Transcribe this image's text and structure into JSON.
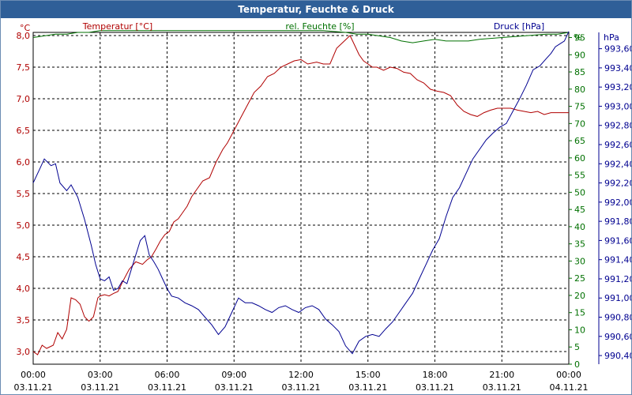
{
  "window": {
    "title": "Temperatur, Feuchte & Druck"
  },
  "colors": {
    "temperature": "#b00000",
    "humidity": "#007000",
    "pressure": "#000090",
    "grid": "#000000"
  },
  "chart_data": {
    "type": "line",
    "title": "Temperatur, Feuchte & Druck",
    "x_ticks": [
      {
        "time": "00:00",
        "date": "03.11.21"
      },
      {
        "time": "03:00",
        "date": "03.11.21"
      },
      {
        "time": "06:00",
        "date": "03.11.21"
      },
      {
        "time": "09:00",
        "date": "03.11.21"
      },
      {
        "time": "12:00",
        "date": "03.11.21"
      },
      {
        "time": "15:00",
        "date": "03.11.21"
      },
      {
        "time": "18:00",
        "date": "03.11.21"
      },
      {
        "time": "21:00",
        "date": "03.11.21"
      },
      {
        "time": "00:00",
        "date": "04.11.21"
      }
    ],
    "xlim": [
      0,
      24
    ],
    "axes": {
      "temperature": {
        "unit": "°C",
        "label": "Temperatur [°C]",
        "ylim": [
          2.8,
          8.05
        ],
        "ticks": [
          "3,0",
          "3,5",
          "4,0",
          "4,5",
          "5,0",
          "5,5",
          "6,0",
          "6,5",
          "7,0",
          "7,5",
          "8,0"
        ]
      },
      "humidity": {
        "unit": "%",
        "label": "rel. Feuchte [%]",
        "ylim": [
          0,
          96.5
        ],
        "ticks": [
          "0",
          "5",
          "10",
          "15",
          "20",
          "25",
          "30",
          "35",
          "40",
          "45",
          "50",
          "55",
          "60",
          "65",
          "70",
          "75",
          "80",
          "85",
          "90",
          "95"
        ]
      },
      "pressure": {
        "unit": "hPa",
        "label": "Druck [hPa]",
        "ylim": [
          990.31,
          993.77
        ],
        "ticks": [
          "990,40",
          "990,60",
          "990,80",
          "991,00",
          "991,20",
          "991,40",
          "991,60",
          "991,80",
          "992,00",
          "992,20",
          "992,40",
          "992,60",
          "992,80",
          "993,00",
          "993,20",
          "993,40",
          "993,60"
        ]
      }
    },
    "series": [
      {
        "name": "Temperatur [°C]",
        "axis": "temperature",
        "x": [
          0,
          0.2,
          0.4,
          0.6,
          0.9,
          1.1,
          1.3,
          1.5,
          1.7,
          1.9,
          2.1,
          2.3,
          2.5,
          2.7,
          2.9,
          3.0,
          3.2,
          3.4,
          3.6,
          3.8,
          4.0,
          4.3,
          4.6,
          4.9,
          5.1,
          5.3,
          5.5,
          5.7,
          5.9,
          6.1,
          6.3,
          6.5,
          6.7,
          6.9,
          7.1,
          7.3,
          7.6,
          7.9,
          8.2,
          8.5,
          8.7,
          9.0,
          9.3,
          9.6,
          9.9,
          10.2,
          10.5,
          10.8,
          11.1,
          11.4,
          11.7,
          12.0,
          12.3,
          12.7,
          13.0,
          13.3,
          13.6,
          13.9,
          14.2,
          14.4,
          14.6,
          14.8,
          15.0,
          15.2,
          15.4,
          15.7,
          16.0,
          16.3,
          16.6,
          16.9,
          17.2,
          17.5,
          17.8,
          18.1,
          18.4,
          18.7,
          19.0,
          19.3,
          19.6,
          19.9,
          20.2,
          20.5,
          20.8,
          21.1,
          21.4,
          21.7,
          22.0,
          22.3,
          22.6,
          22.9,
          23.2,
          23.5,
          23.8,
          24.0
        ],
        "values": [
          3.0,
          2.95,
          3.1,
          3.05,
          3.1,
          3.3,
          3.2,
          3.35,
          3.85,
          3.82,
          3.75,
          3.55,
          3.48,
          3.55,
          3.85,
          3.88,
          3.9,
          3.88,
          3.92,
          3.95,
          4.1,
          4.3,
          4.42,
          4.38,
          4.45,
          4.5,
          4.62,
          4.75,
          4.85,
          4.9,
          5.05,
          5.1,
          5.2,
          5.3,
          5.45,
          5.55,
          5.7,
          5.75,
          6.0,
          6.2,
          6.3,
          6.5,
          6.7,
          6.9,
          7.1,
          7.2,
          7.35,
          7.4,
          7.5,
          7.55,
          7.6,
          7.62,
          7.55,
          7.58,
          7.55,
          7.55,
          7.8,
          7.9,
          8.0,
          7.85,
          7.7,
          7.6,
          7.55,
          7.5,
          7.5,
          7.45,
          7.5,
          7.48,
          7.42,
          7.4,
          7.3,
          7.25,
          7.15,
          7.12,
          7.1,
          7.05,
          6.9,
          6.8,
          6.75,
          6.72,
          6.78,
          6.82,
          6.85,
          6.85,
          6.85,
          6.82,
          6.8,
          6.78,
          6.8,
          6.75,
          6.78,
          6.78,
          6.78,
          6.78
        ]
      },
      {
        "name": "rel. Feuchte [%]",
        "axis": "humidity",
        "x": [
          0,
          0.5,
          1.0,
          1.5,
          2.0,
          2.5,
          3.0,
          4.0,
          5.0,
          6.0,
          7.0,
          8.0,
          9.0,
          10.0,
          11.0,
          12.0,
          13.0,
          14.0,
          14.5,
          15.0,
          15.5,
          16.0,
          16.5,
          17.0,
          17.5,
          18.0,
          18.5,
          19.0,
          19.5,
          20.0,
          21.0,
          22.0,
          23.0,
          23.5,
          24.0
        ],
        "values": [
          95,
          95.5,
          96,
          96,
          96.5,
          96.5,
          97,
          97,
          97,
          97,
          97,
          97,
          97,
          97,
          97,
          97,
          97,
          96.5,
          96,
          96,
          95.5,
          95,
          94,
          93.5,
          94,
          94.5,
          94,
          94,
          94,
          94.5,
          95,
          95.5,
          96,
          96,
          96.5
        ]
      },
      {
        "name": "Druck [hPa]",
        "axis": "pressure",
        "x": [
          0,
          0.3,
          0.5,
          0.8,
          1.0,
          1.2,
          1.5,
          1.7,
          2.0,
          2.3,
          2.6,
          2.8,
          3.0,
          3.2,
          3.4,
          3.6,
          3.8,
          4.0,
          4.2,
          4.4,
          4.6,
          4.8,
          5.0,
          5.2,
          5.4,
          5.6,
          5.8,
          6.0,
          6.2,
          6.5,
          6.8,
          7.1,
          7.4,
          7.7,
          8.0,
          8.3,
          8.6,
          8.9,
          9.2,
          9.5,
          9.8,
          10.1,
          10.4,
          10.7,
          11.0,
          11.3,
          11.6,
          11.9,
          12.2,
          12.5,
          12.8,
          13.1,
          13.4,
          13.7,
          14.0,
          14.3,
          14.6,
          14.9,
          15.2,
          15.5,
          15.8,
          16.1,
          16.4,
          16.7,
          17.0,
          17.3,
          17.6,
          17.9,
          18.2,
          18.5,
          18.8,
          19.1,
          19.4,
          19.7,
          20.0,
          20.3,
          20.6,
          20.9,
          21.2,
          21.5,
          21.8,
          22.1,
          22.4,
          22.7,
          23.0,
          23.2,
          23.4,
          23.6,
          23.8,
          24.0
        ],
        "values": [
          992.2,
          992.35,
          992.45,
          992.38,
          992.4,
          992.2,
          992.12,
          992.18,
          992.05,
          991.82,
          991.55,
          991.35,
          991.2,
          991.18,
          991.22,
          991.08,
          991.1,
          991.18,
          991.15,
          991.3,
          991.45,
          991.6,
          991.65,
          991.45,
          991.38,
          991.3,
          991.2,
          991.1,
          991.02,
          991.0,
          990.95,
          990.92,
          990.88,
          990.8,
          990.72,
          990.62,
          990.7,
          990.85,
          991.0,
          990.95,
          990.95,
          990.92,
          990.88,
          990.85,
          990.9,
          990.92,
          990.88,
          990.85,
          990.9,
          990.92,
          990.88,
          990.78,
          990.72,
          990.65,
          990.5,
          990.42,
          990.55,
          990.6,
          990.62,
          990.6,
          990.68,
          990.75,
          990.85,
          990.95,
          991.05,
          991.2,
          991.35,
          991.5,
          991.62,
          991.85,
          992.05,
          992.15,
          992.3,
          992.45,
          992.55,
          992.65,
          992.72,
          992.78,
          992.82,
          992.95,
          993.08,
          993.22,
          993.38,
          993.42,
          993.5,
          993.55,
          993.62,
          993.65,
          993.68,
          993.78
        ]
      }
    ]
  }
}
